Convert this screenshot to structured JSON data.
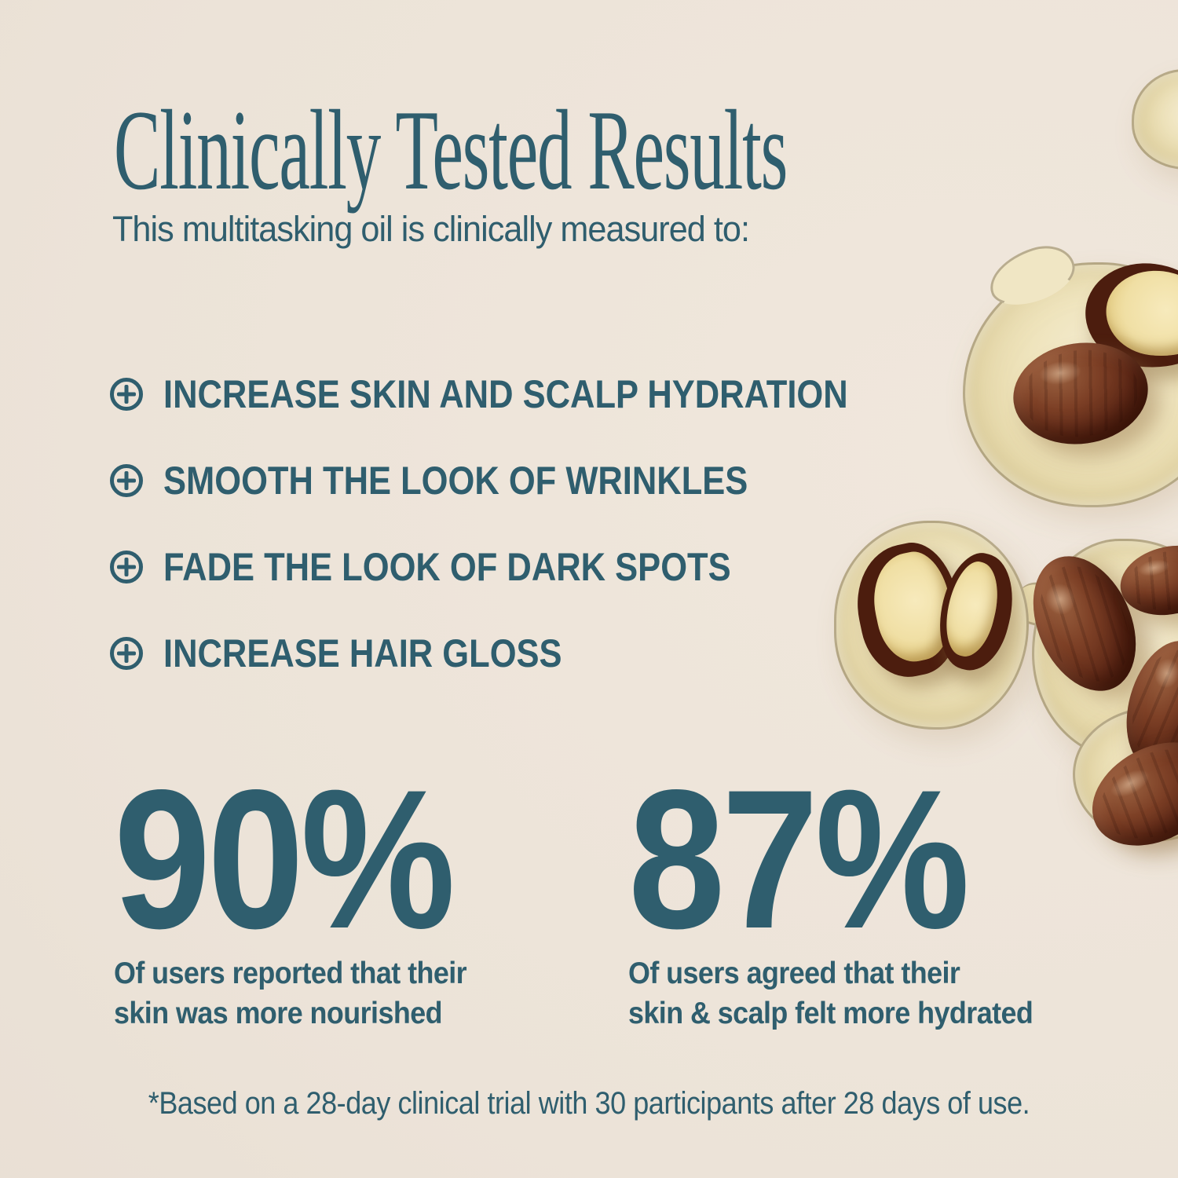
{
  "theme": {
    "background": "#ece3d8",
    "text_color": "#2f5e6e",
    "oil_color": "#eee3ba",
    "seed_color": "#5e2816",
    "seed_interior_color": "#f4e6b4"
  },
  "header": {
    "title": "Clinically Tested Results",
    "subtitle": "This multitasking oil is clinically measured to:"
  },
  "benefits": {
    "bullet_icon": "plus-circle-icon",
    "items": [
      "INCREASE SKIN AND SCALP HYDRATION",
      "SMOOTH THE LOOK OF WRINKLES",
      "FADE THE LOOK OF DARK SPOTS",
      "INCREASE HAIR GLOSS"
    ]
  },
  "stats": [
    {
      "value": "90%",
      "line1": "Of users reported that their",
      "line2": "skin was more nourished"
    },
    {
      "value": "87%",
      "line1": "Of users agreed that their",
      "line2": "skin & scalp felt more hydrated"
    }
  ],
  "footnote": "*Based on a 28-day clinical trial with 30 participants after 28 days of use.",
  "imagery": {
    "photo": "jojoba-seeds-and-oil-droplets"
  }
}
